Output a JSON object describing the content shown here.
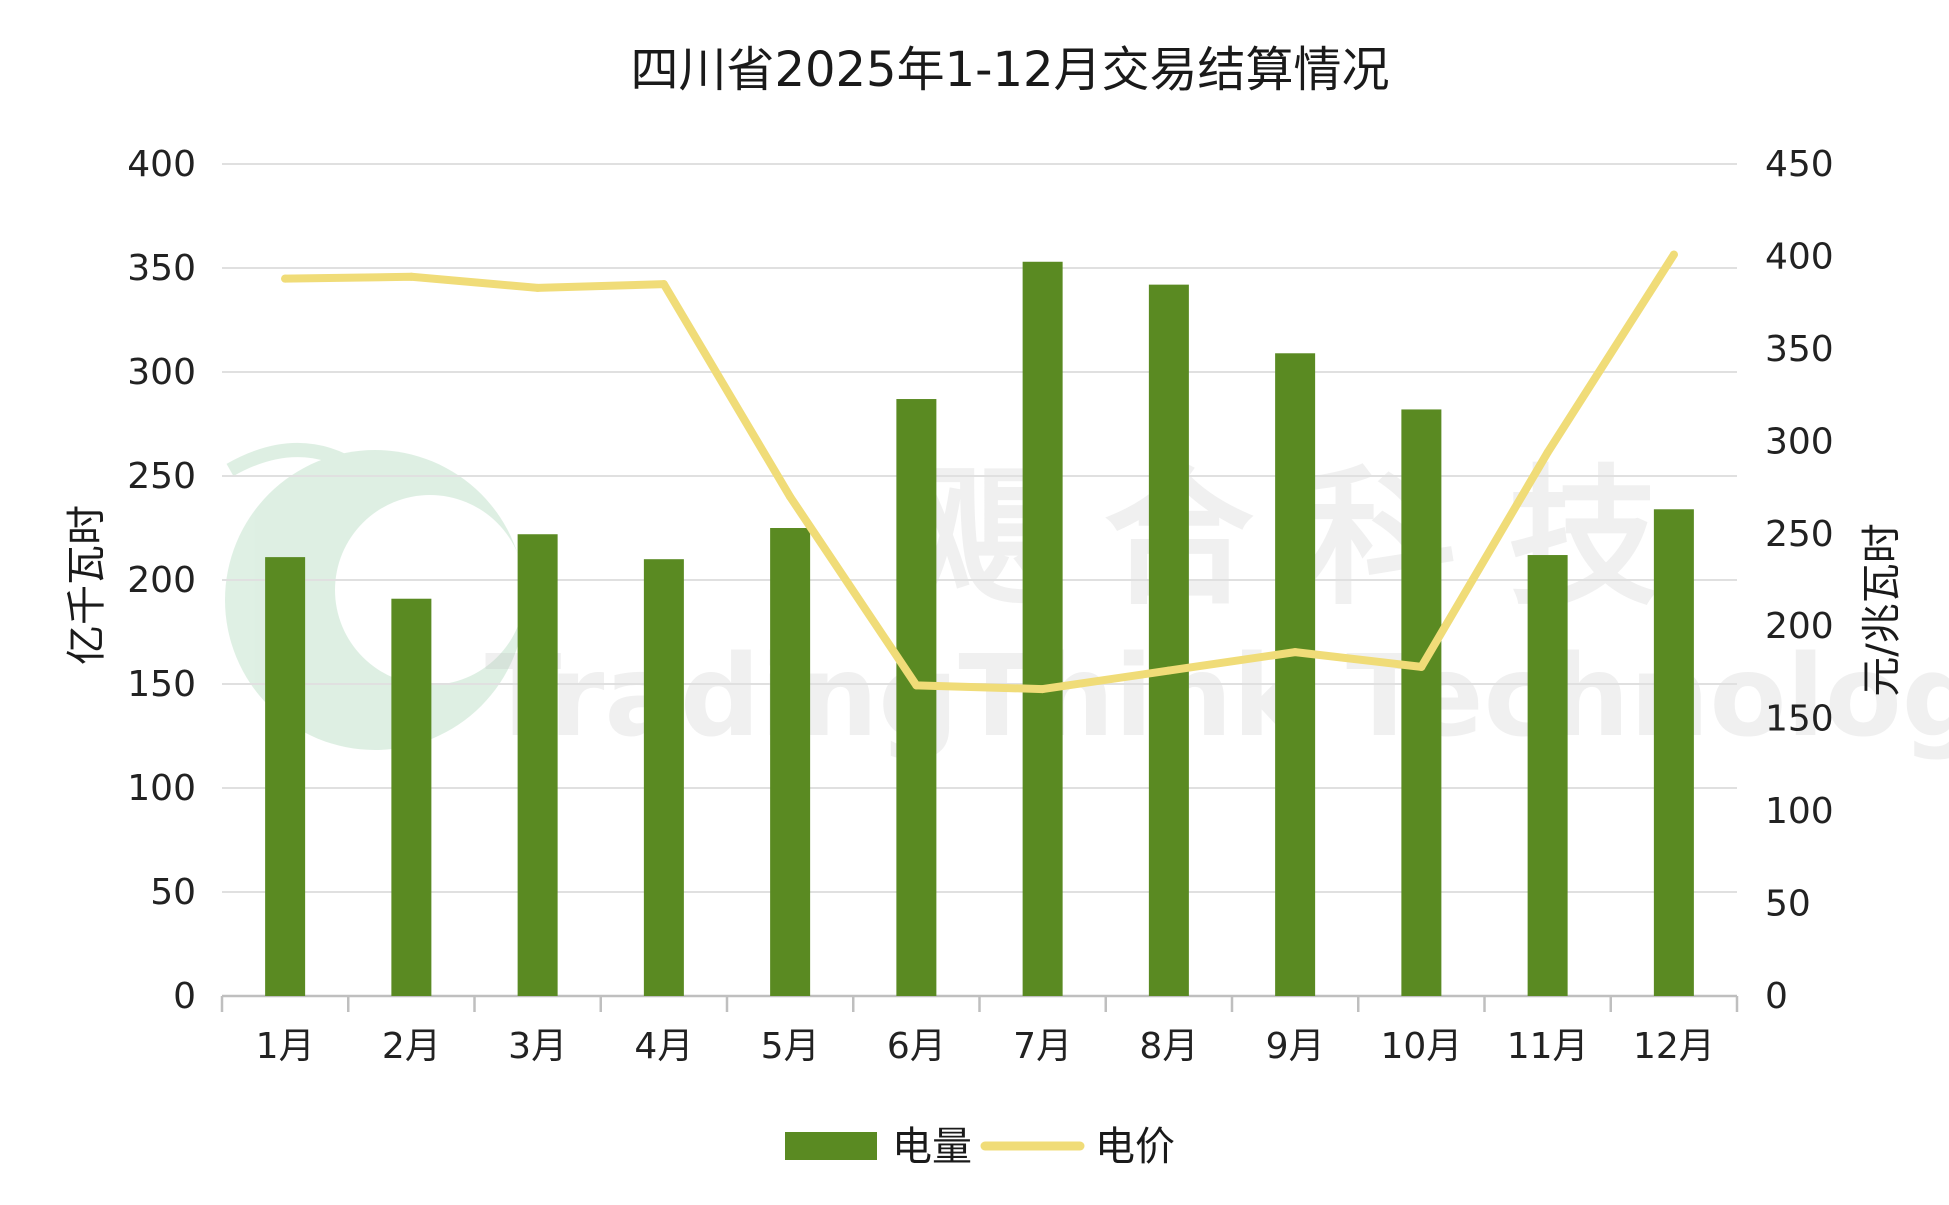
{
  "chart_data": {
    "type": "bar",
    "title": "四川省2025年1-12月交易结算情况",
    "categories": [
      "1月",
      "2月",
      "3月",
      "4月",
      "5月",
      "6月",
      "7月",
      "8月",
      "9月",
      "10月",
      "11月",
      "12月"
    ],
    "series": [
      {
        "name": "电量",
        "type": "bar",
        "axis": "left",
        "color": "#5a8a22",
        "values": [
          211,
          191,
          222,
          210,
          225,
          287,
          353,
          342,
          309,
          282,
          212,
          234
        ]
      },
      {
        "name": "电价",
        "type": "line",
        "axis": "right",
        "color": "#f0dc78",
        "values": [
          388,
          389,
          383,
          385,
          270,
          168,
          166,
          176,
          186,
          178,
          294,
          401
        ]
      }
    ],
    "ylabel": "亿千瓦时",
    "y2label": "元/兆瓦时",
    "ylim": [
      0,
      400
    ],
    "y2lim": [
      0,
      450
    ],
    "yticks": [
      0,
      50,
      100,
      150,
      200,
      250,
      300,
      350,
      400
    ],
    "y2ticks": [
      0,
      50,
      100,
      150,
      200,
      250,
      300,
      350,
      400,
      450
    ],
    "grid": true,
    "legend_position": "bottom-center"
  },
  "watermark": {
    "cn": "飓 合 科 技",
    "en": "TradingThink Technology"
  }
}
